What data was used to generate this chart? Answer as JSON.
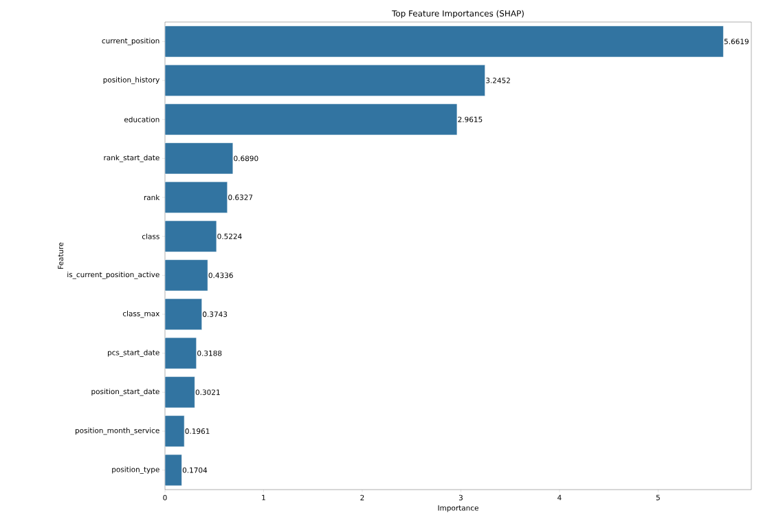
{
  "chart_data": {
    "type": "bar",
    "orientation": "horizontal",
    "title": "Top Feature Importances (SHAP)",
    "xlabel": "Importance",
    "ylabel": "Feature",
    "categories": [
      "current_position",
      "position_history",
      "education",
      "rank_start_date",
      "rank",
      "class",
      "is_current_position_active",
      "class_max",
      "pcs_start_date",
      "position_start_date",
      "position_month_service",
      "position_type"
    ],
    "values": [
      5.6619,
      3.2452,
      2.9615,
      0.689,
      0.6327,
      0.5224,
      0.4336,
      0.3743,
      0.3188,
      0.3021,
      0.1961,
      0.1704
    ],
    "value_labels": [
      "5.6619",
      "3.2452",
      "2.9615",
      "0.6890",
      "0.6327",
      "0.5224",
      "0.4336",
      "0.3743",
      "0.3188",
      "0.3021",
      "0.1961",
      "0.1704"
    ],
    "color": "#3274a1",
    "xlim": [
      0,
      5.945
    ],
    "xticks": [
      0,
      1,
      2,
      3,
      4,
      5
    ],
    "grid": false
  }
}
